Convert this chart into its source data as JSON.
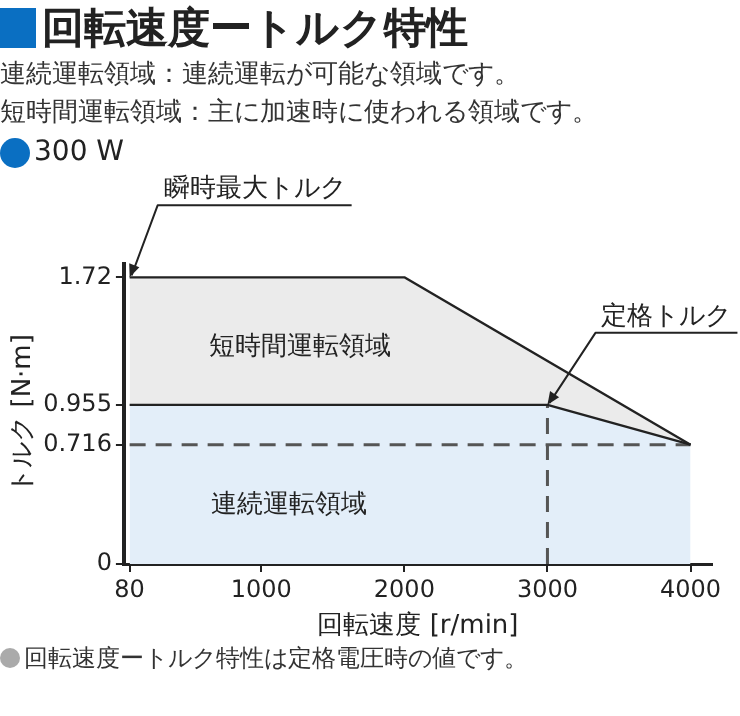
{
  "chart_data": {
    "type": "area",
    "title": "回転速度ートルク特性",
    "subtitle": "300 W",
    "xlabel": "回転速度 [r/min]",
    "ylabel": "トルク [N·m]",
    "xlim": [
      40,
      4150
    ],
    "xticks": [
      80,
      1000,
      2000,
      3000,
      4000
    ],
    "ylim": [
      0,
      1.8
    ],
    "yticks": [
      0,
      0.716,
      0.955,
      1.72
    ],
    "marker": "none",
    "legend": false,
    "series": [
      {
        "type": "area",
        "color": "#ebebeb",
        "x": [
          80,
          2000,
          4000
        ],
        "values": [
          1.72,
          1.72,
          0.716
        ]
      },
      {
        "type": "area",
        "color": "#e3eef9",
        "x": [
          80,
          3000,
          4000
        ],
        "values": [
          0.955,
          0.955,
          0.716
        ]
      },
      {
        "type": "line",
        "color": "#555555",
        "line_style": "dashed",
        "x": [
          80,
          4000
        ],
        "values": [
          0.716,
          0.716
        ]
      },
      {
        "type": "line",
        "color": "#555555",
        "line_style": "dashed",
        "x": [
          3000,
          3000
        ],
        "values": [
          0,
          0.955
        ]
      }
    ],
    "annotations": [
      "連続運転領域：連続運転が可能な領域です。",
      "短時間運転領域：主に加速時に使われる領域です。",
      "短時間運転領域",
      "連続運転領域",
      {
        "text": "瞬時最大トルク",
        "x": 80,
        "y": 1.72
      },
      {
        "text": "定格トルク",
        "x": 3000,
        "y": 0.955
      },
      "回転速度ートルク特性は定格電圧時の値です。"
    ]
  }
}
